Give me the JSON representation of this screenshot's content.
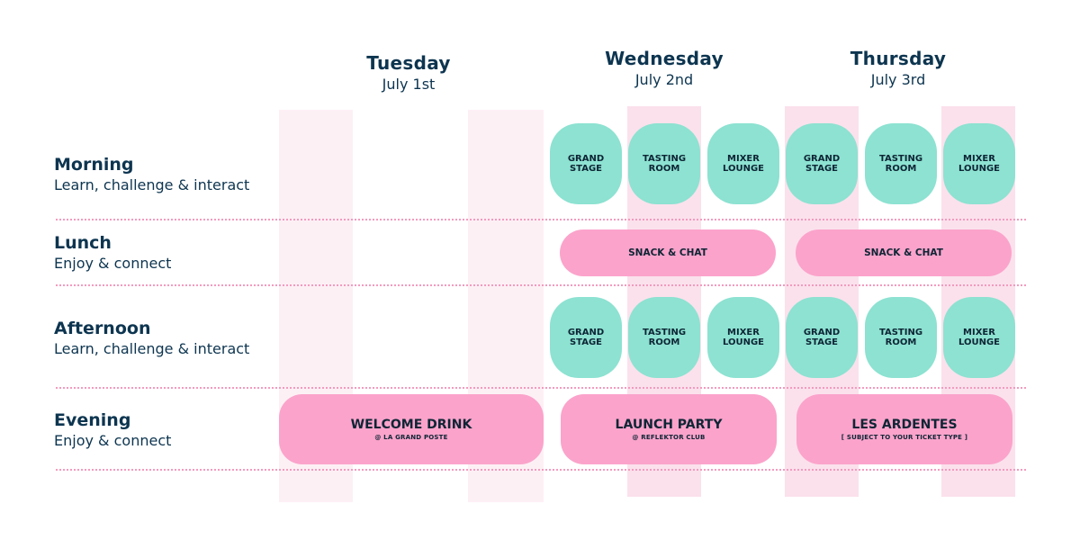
{
  "days": [
    {
      "name": "Tuesday",
      "date": "July 1st"
    },
    {
      "name": "Wednesday",
      "date": "July 2nd"
    },
    {
      "name": "Thursday",
      "date": "July 3rd"
    }
  ],
  "slots": [
    {
      "title": "Morning",
      "subtitle": "Learn, challenge & interact"
    },
    {
      "title": "Lunch",
      "subtitle": "Enjoy & connect"
    },
    {
      "title": "Afternoon",
      "subtitle": "Learn, challenge & interact"
    },
    {
      "title": "Evening",
      "subtitle": "Enjoy & connect"
    }
  ],
  "rooms": [
    "GRAND\nSTAGE",
    "TASTING\nROOM",
    "MIXER\nLOUNGE"
  ],
  "lunch_label": "SNACK & CHAT",
  "evening": [
    {
      "title": "WELCOME DRINK",
      "subtitle": "@ LA GRAND POSTE"
    },
    {
      "title": "LAUNCH PARTY",
      "subtitle": "@ REFLEKTOR CLUB"
    },
    {
      "title": "LES ARDENTES",
      "subtitle": "[ SUBJECT TO YOUR TICKET TYPE ]"
    }
  ],
  "colors": {
    "teal": "#8de2d1",
    "pink": "#fba3cb",
    "navy": "#0d3550",
    "dots": "#f29bbe"
  }
}
